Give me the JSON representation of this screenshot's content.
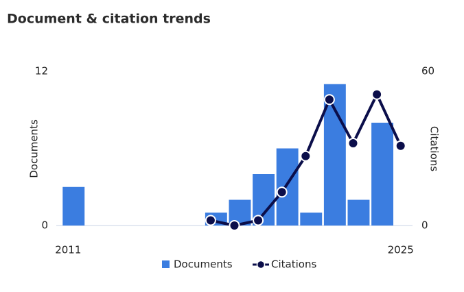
{
  "chart_data": {
    "type": "bar",
    "title": "Document & citation trends",
    "categories": [
      "2011",
      null,
      null,
      null,
      null,
      null,
      null,
      null,
      null,
      null,
      null,
      null,
      null,
      null,
      "2025"
    ],
    "series": [
      {
        "name": "Documents",
        "type": "bar",
        "color": "#3b7de0",
        "values": [
          3,
          0,
          0,
          0,
          0,
          0,
          1,
          2,
          4,
          6,
          1,
          11,
          2,
          8,
          0
        ]
      },
      {
        "name": "Citations",
        "type": "line",
        "axis": "y2",
        "color": "#0b0e4a",
        "values": [
          null,
          null,
          null,
          null,
          null,
          null,
          2,
          0,
          2,
          13,
          27,
          49,
          32,
          51,
          31
        ]
      }
    ],
    "y_label": "Documents",
    "y2_label": "Citations",
    "ylim": [
      0,
      12
    ],
    "yticks": [
      0,
      12
    ],
    "y2lim": [
      0,
      60
    ],
    "y2ticks": [
      0,
      60
    ],
    "legend": "bottom"
  }
}
